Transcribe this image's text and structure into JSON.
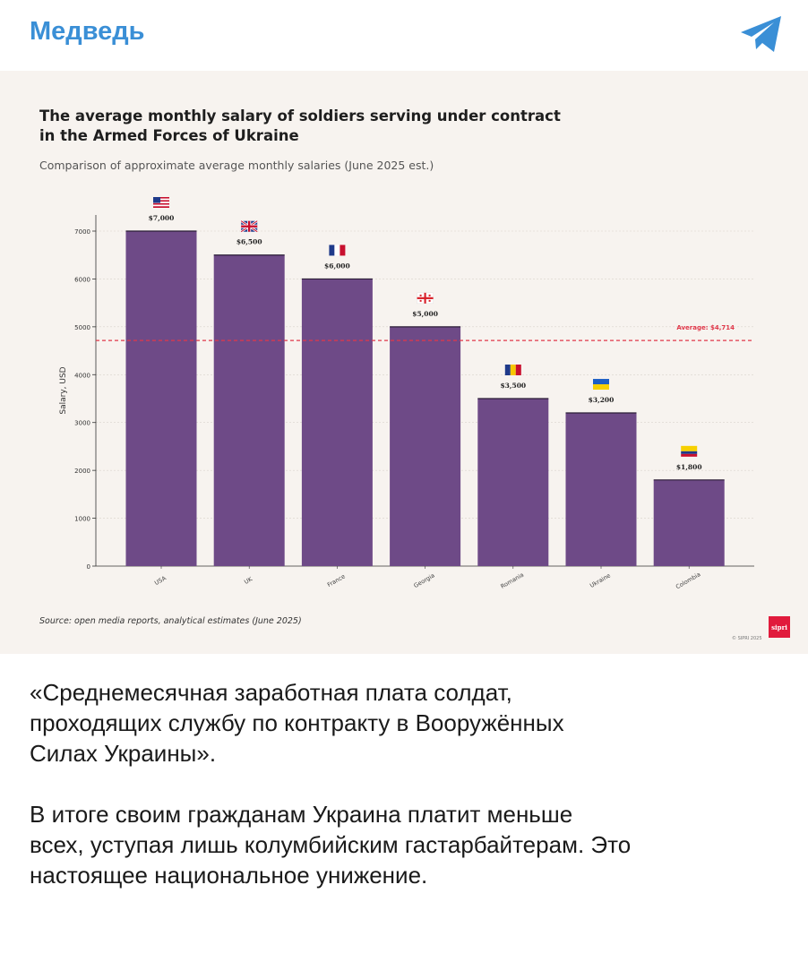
{
  "header": {
    "channel_name": "Медведь",
    "share_icon": "telegram-plane-icon",
    "accent_color": "#3a8fd6"
  },
  "chart_data": {
    "type": "bar",
    "title": "The average monthly salary of soldiers serving under contract in the Armed Forces of Ukraine",
    "subtitle": "Comparison of approximate average monthly salaries (June 2025 est.)",
    "xlabel": "",
    "ylabel": "Salary, USD",
    "categories": [
      "USA",
      "UK",
      "France",
      "Georgia",
      "Romania",
      "Ukraine",
      "Colombia"
    ],
    "values": [
      7000,
      6500,
      6000,
      5000,
      3500,
      3200,
      1800
    ],
    "value_labels": [
      "$7,000",
      "$6,500",
      "$6,000",
      "$5,000",
      "$3,500",
      "$3,200",
      "$1,800"
    ],
    "flags": [
      "us-flag-icon",
      "uk-flag-icon",
      "france-flag-icon",
      "georgia-flag-icon",
      "romania-flag-icon",
      "ukraine-flag-icon",
      "colombia-flag-icon"
    ],
    "yticks": [
      "0",
      "1000",
      "2000",
      "3000",
      "4000",
      "5000",
      "6000",
      "7000"
    ],
    "ylim": [
      0,
      7400
    ],
    "average": 4714,
    "average_label": "Average: $4,714",
    "bar_color": "#6e4a87",
    "average_color": "#e0384a",
    "grid": true,
    "source": "Source: open media reports, analytical estimates (June 2025)",
    "credit": "© SIPRI 2025",
    "logo_text": "sipri"
  },
  "post": {
    "paragraphs": [
      "«Среднемесячная заработная плата солдат,\nпроходящих службу по контракту в Вооружённых\nСилах Украины».",
      "В итоге своим гражданам Украина платит меньше\nвсех, уступая лишь колумбийским гастарбайтерам. Это\nнастоящее национальное унижение."
    ]
  }
}
